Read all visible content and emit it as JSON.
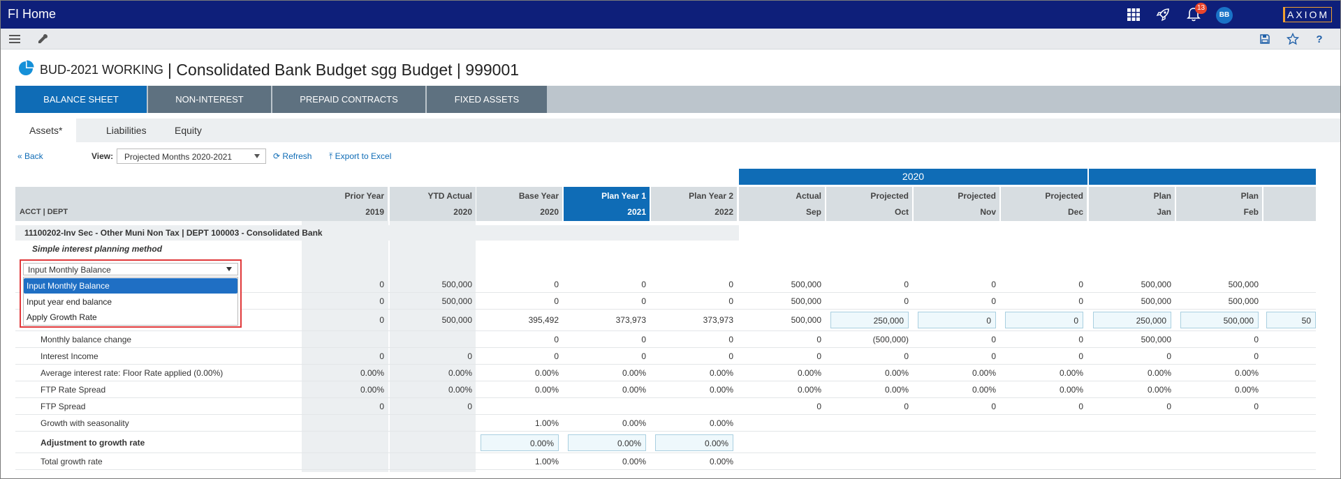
{
  "app": {
    "title": "FI Home",
    "notifications": "13",
    "avatar": "BB",
    "logo": "AXIOM"
  },
  "page": {
    "title_prefix": "BUD-2021 WORKING",
    "title_rest": "| Consolidated Bank Budget sgg Budget | 999001"
  },
  "main_tabs": [
    "BALANCE SHEET",
    "NON-INTEREST",
    "PREPAID CONTRACTS",
    "FIXED ASSETS"
  ],
  "sub_tabs": [
    "Assets*",
    "Liabilities",
    "Equity"
  ],
  "controls": {
    "back": "« Back",
    "view_label": "View:",
    "view_value": "Projected Months 2020-2021",
    "refresh": "Refresh",
    "export": "Export to Excel"
  },
  "table": {
    "acct_header": "ACCT | DEPT",
    "year_band": "2020",
    "columns": [
      {
        "l1": "Prior Year",
        "l2": "2019"
      },
      {
        "l1": "YTD Actual",
        "l2": "2020"
      },
      {
        "l1": "Base Year",
        "l2": "2020"
      },
      {
        "l1": "Plan Year 1",
        "l2": "2021"
      },
      {
        "l1": "Plan Year 2",
        "l2": "2022"
      },
      {
        "l1": "Actual",
        "l2": "Sep"
      },
      {
        "l1": "Projected",
        "l2": "Oct"
      },
      {
        "l1": "Projected",
        "l2": "Nov"
      },
      {
        "l1": "Projected",
        "l2": "Dec"
      },
      {
        "l1": "Plan",
        "l2": "Jan"
      },
      {
        "l1": "Plan",
        "l2": "Feb"
      }
    ],
    "account": "11100202-Inv Sec - Other Muni Non Tax | DEPT 100003 - Consolidated Bank",
    "method_label": "Simple interest planning method",
    "dropdown": {
      "selected": "Input Monthly Balance",
      "options": [
        "Input Monthly Balance",
        "Input year end balance",
        "Apply Growth Rate"
      ]
    },
    "rows": [
      {
        "label": "",
        "values": [
          "0",
          "500,000",
          "0",
          "0",
          "0",
          "500,000",
          "0",
          "0",
          "0",
          "500,000",
          "500,000"
        ]
      },
      {
        "label": "",
        "values": [
          "0",
          "500,000",
          "0",
          "0",
          "0",
          "500,000",
          "0",
          "0",
          "0",
          "500,000",
          "500,000"
        ]
      },
      {
        "label": "",
        "values": [
          "0",
          "500,000",
          "395,492",
          "373,973",
          "373,973",
          "500,000",
          "250,000",
          "0",
          "0",
          "250,000",
          "500,000"
        ],
        "partial": "50"
      },
      {
        "label": "Monthly balance change",
        "values": [
          "",
          "",
          "0",
          "0",
          "0",
          "0",
          "(500,000)",
          "0",
          "0",
          "500,000",
          "0"
        ]
      },
      {
        "label": "Interest Income",
        "values": [
          "0",
          "0",
          "0",
          "0",
          "0",
          "0",
          "0",
          "0",
          "0",
          "0",
          "0"
        ]
      },
      {
        "label": "Average interest rate: Floor Rate applied (0.00%)",
        "values": [
          "0.00%",
          "0.00%",
          "0.00%",
          "0.00%",
          "0.00%",
          "0.00%",
          "0.00%",
          "0.00%",
          "0.00%",
          "0.00%",
          "0.00%"
        ]
      },
      {
        "label": "FTP Rate Spread",
        "values": [
          "0.00%",
          "0.00%",
          "0.00%",
          "0.00%",
          "0.00%",
          "0.00%",
          "0.00%",
          "0.00%",
          "0.00%",
          "0.00%",
          "0.00%"
        ]
      },
      {
        "label": "FTP Spread",
        "values": [
          "0",
          "0",
          "",
          "",
          "",
          "0",
          "0",
          "0",
          "0",
          "0",
          "0"
        ]
      },
      {
        "label": "Growth with seasonality",
        "values": [
          "",
          "",
          "1.00%",
          "0.00%",
          "0.00%",
          "",
          "",
          "",
          "",
          "",
          ""
        ]
      },
      {
        "label": "Adjustment to growth rate",
        "values": [
          "",
          "",
          "0.00%",
          "0.00%",
          "0.00%",
          "",
          "",
          "",
          "",
          "",
          ""
        ]
      },
      {
        "label": "Total growth rate",
        "values": [
          "",
          "",
          "1.00%",
          "0.00%",
          "0.00%",
          "",
          "",
          "",
          "",
          "",
          ""
        ]
      }
    ]
  },
  "colors": {
    "nav": "#0e1f7a",
    "accent": "#0f6cb6",
    "tab_inactive": "#5e7180",
    "highlight": "#e0383a"
  }
}
